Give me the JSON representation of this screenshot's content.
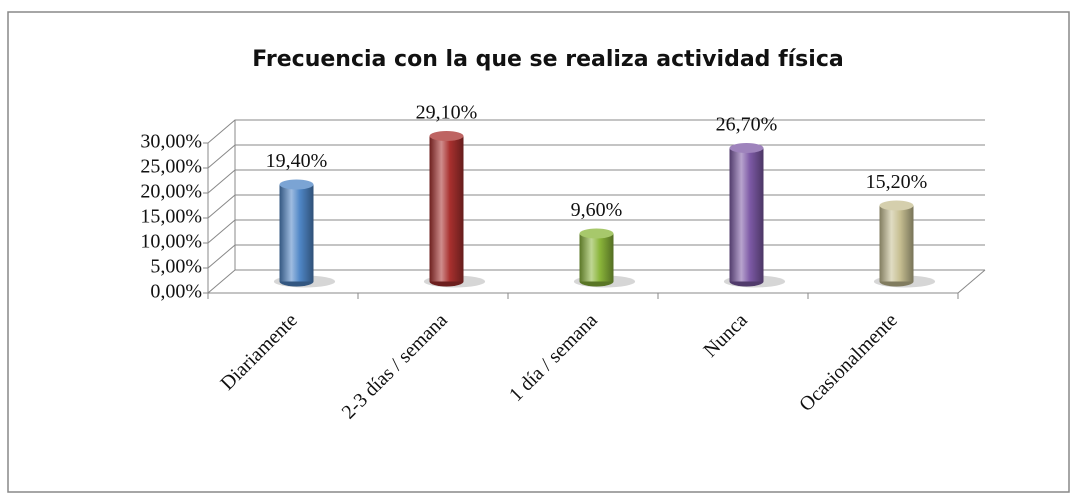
{
  "chart_data": {
    "type": "bar",
    "title": "Frecuencia con la que se realiza actividad física",
    "categories": [
      "Diariamente",
      "2-3 días / semana",
      "1 día / semana",
      "Nunca",
      "Ocasionalmente"
    ],
    "values": [
      19.4,
      29.1,
      9.6,
      26.7,
      15.2
    ],
    "value_labels": [
      "19,40%",
      "29,10%",
      "9,60%",
      "26,70%",
      "15,20%"
    ],
    "colors": [
      "#4f86c6",
      "#a8302e",
      "#8ab53a",
      "#7d5aa6",
      "#c7bf92"
    ],
    "ylim": [
      0,
      30
    ],
    "yticks": [
      {
        "value": 0,
        "label": "0,00%"
      },
      {
        "value": 5,
        "label": "5,00%"
      },
      {
        "value": 10,
        "label": "10,00%"
      },
      {
        "value": 15,
        "label": "15,00%"
      },
      {
        "value": 20,
        "label": "20,00%"
      },
      {
        "value": 25,
        "label": "25,00%"
      },
      {
        "value": 30,
        "label": "30,00%"
      }
    ],
    "grid": true
  }
}
